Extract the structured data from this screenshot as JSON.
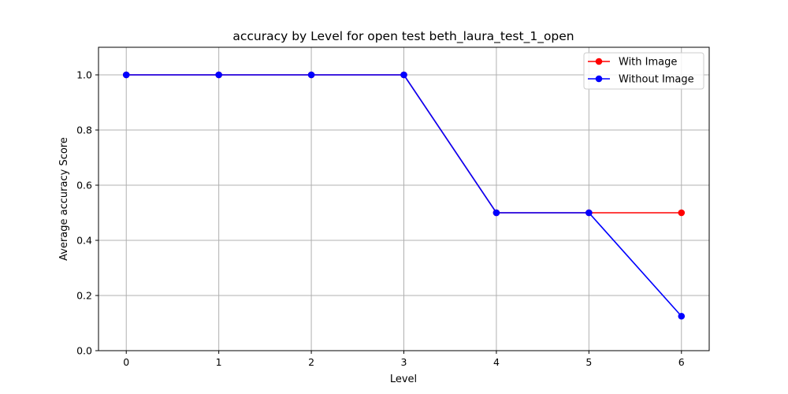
{
  "chart_data": {
    "type": "line",
    "title": "accuracy by Level for open test beth_laura_test_1_open",
    "xlabel": "Level",
    "ylabel": "Average accuracy Score",
    "x": [
      0,
      1,
      2,
      3,
      4,
      5,
      6
    ],
    "xlim": [
      -0.3,
      6.3
    ],
    "ylim": [
      0,
      1.1
    ],
    "xticks": [
      "0",
      "1",
      "2",
      "3",
      "4",
      "5",
      "6"
    ],
    "yticks": [
      "0.0",
      "0.2",
      "0.4",
      "0.6",
      "0.8",
      "1.0"
    ],
    "ytick_values": [
      0,
      0.2,
      0.4,
      0.6,
      0.8,
      1.0
    ],
    "grid": true,
    "legend_position": "top-right",
    "series": [
      {
        "name": "With Image",
        "color": "#ff0000",
        "values": [
          1.0,
          1.0,
          1.0,
          1.0,
          0.5,
          0.5,
          0.5
        ]
      },
      {
        "name": "Without Image",
        "color": "#0000ff",
        "values": [
          1.0,
          1.0,
          1.0,
          1.0,
          0.5,
          0.5,
          0.125
        ]
      }
    ]
  }
}
